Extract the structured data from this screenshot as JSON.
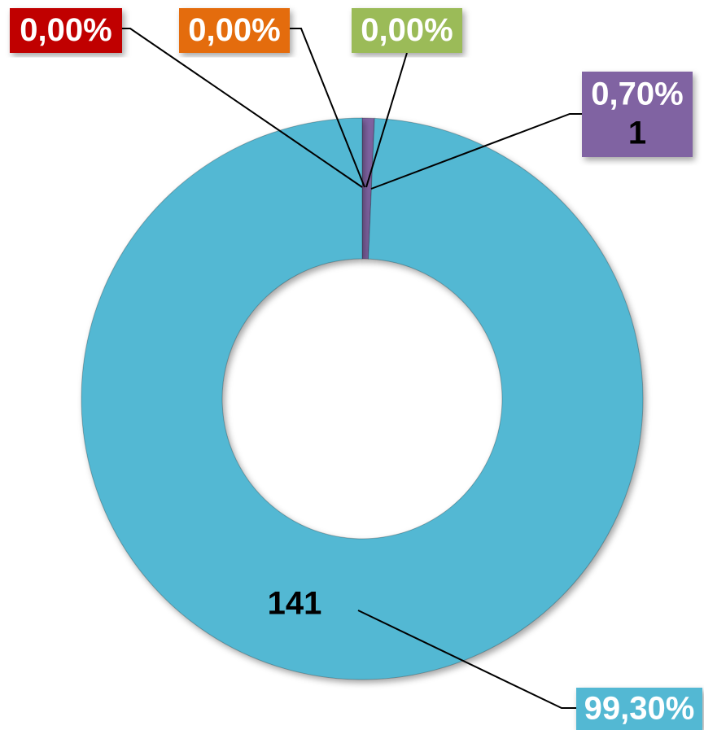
{
  "chart_data": {
    "type": "donut",
    "values": [
      0,
      0,
      0,
      0.7,
      99.3
    ],
    "value_labels": [
      "0,00%",
      "0,00%",
      "0,00%",
      "0,70%",
      "99,30%"
    ],
    "counts": [
      null,
      null,
      null,
      1,
      141
    ],
    "colors": [
      "#c00000",
      "#e46c0a",
      "#9bbb59",
      "#8064a2",
      "#52b8d3"
    ]
  }
}
